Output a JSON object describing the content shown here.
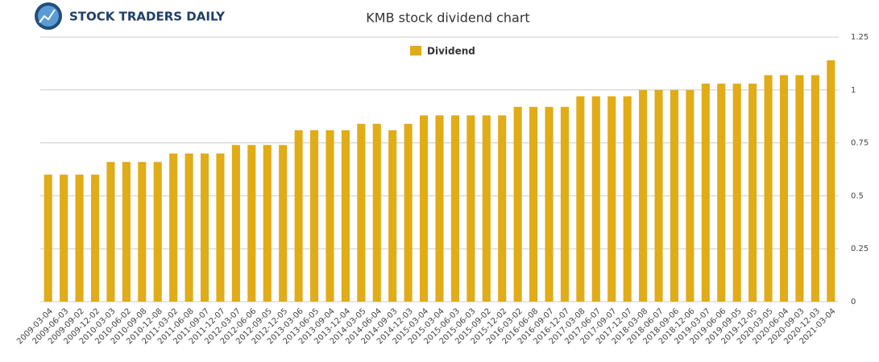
{
  "logo": "STOCK TRADERS DAILY",
  "chart_data": {
    "type": "bar",
    "title": "KMB stock dividend chart",
    "categories": [
      "2009-03-04",
      "2009-06-03",
      "2009-09-02",
      "2009-12-02",
      "2010-03-03",
      "2010-06-02",
      "2010-09-08",
      "2010-12-08",
      "2011-03-02",
      "2011-06-08",
      "2011-09-07",
      "2011-12-07",
      "2012-03-07",
      "2012-06-06",
      "2012-09-05",
      "2012-12-05",
      "2013-03-06",
      "2013-06-05",
      "2013-09-04",
      "2013-12-04",
      "2014-03-05",
      "2014-06-04",
      "2014-09-03",
      "2014-12-03",
      "2015-03-04",
      "2015-03-04",
      "2015-06-03",
      "2015-06-03",
      "2015-09-02",
      "2015-12-02",
      "2016-03-02",
      "2016-06-08",
      "2016-09-07",
      "2016-12-07",
      "2017-03-08",
      "2017-06-07",
      "2017-09-07",
      "2017-12-07",
      "2018-03-08",
      "2018-06-07",
      "2018-09-06",
      "2018-12-06",
      "2019-03-07",
      "2019-06-06",
      "2019-09-05",
      "2019-12-05",
      "2020-03-05",
      "2020-06-04",
      "2020-09-03",
      "2020-12-03",
      "2021-03-04"
    ],
    "series": [
      {
        "name": "Dividend",
        "color": "#e0ac17",
        "values": [
          0.6,
          0.6,
          0.6,
          0.6,
          0.66,
          0.66,
          0.66,
          0.66,
          0.7,
          0.7,
          0.7,
          0.7,
          0.74,
          0.74,
          0.74,
          0.74,
          0.81,
          0.81,
          0.81,
          0.81,
          0.84,
          0.84,
          0.81,
          0.84,
          0.88,
          0.88,
          0.88,
          0.88,
          0.88,
          0.88,
          0.92,
          0.92,
          0.92,
          0.92,
          0.97,
          0.97,
          0.97,
          0.97,
          1.0,
          1.0,
          1.0,
          1.0,
          1.03,
          1.03,
          1.03,
          1.03,
          1.07,
          1.07,
          1.07,
          1.07,
          1.14
        ]
      }
    ],
    "ylim": [
      0,
      1.25
    ],
    "yticks": [
      0,
      0.25,
      0.5,
      0.75,
      1,
      1.25
    ],
    "grid": true,
    "legend": "top"
  }
}
